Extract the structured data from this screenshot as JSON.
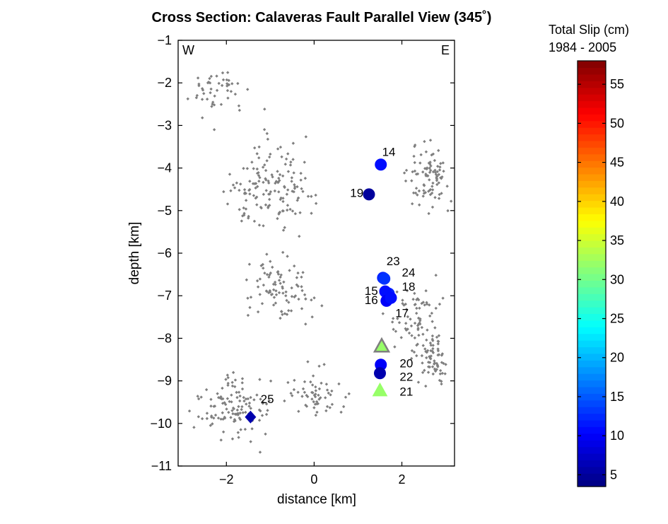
{
  "chart_data": {
    "type": "scatter",
    "title": "Cross Section: Calaveras Fault Parallel View (345˚)",
    "xlabel": "distance [km]",
    "ylabel": "depth [km]",
    "xlim": [
      -3.1,
      3.2
    ],
    "ylim": [
      -11,
      -1
    ],
    "xticks": [
      -2,
      0,
      2
    ],
    "xtick_labels": [
      "−2",
      "0",
      "2"
    ],
    "yticks": [
      -1,
      -2,
      -3,
      -4,
      -5,
      -6,
      -7,
      -8,
      -9,
      -10,
      -11
    ],
    "ytick_labels": [
      "−1",
      "−2",
      "−3",
      "−4",
      "−5",
      "−6",
      "−7",
      "−8",
      "−9",
      "−10",
      "−11"
    ],
    "corner_labels": {
      "left": "W",
      "right": "E"
    },
    "grid": false,
    "background_seismicity": {
      "color": "#7f7f7f",
      "count": 700,
      "clusters": [
        {
          "x": 2.6,
          "y": -4.2,
          "sx": 0.6,
          "sy": 0.8,
          "n": 90
        },
        {
          "x": -1.0,
          "y": -4.5,
          "sx": 1.2,
          "sy": 1.2,
          "n": 150
        },
        {
          "x": -0.8,
          "y": -6.8,
          "sx": 0.9,
          "sy": 0.8,
          "n": 90
        },
        {
          "x": 2.3,
          "y": -7.5,
          "sx": 0.8,
          "sy": 0.9,
          "n": 80
        },
        {
          "x": 2.7,
          "y": -8.5,
          "sx": 0.5,
          "sy": 0.6,
          "n": 60
        },
        {
          "x": -1.8,
          "y": -9.6,
          "sx": 0.9,
          "sy": 0.8,
          "n": 120
        },
        {
          "x": 0.0,
          "y": -9.4,
          "sx": 0.9,
          "sy": 0.7,
          "n": 60
        },
        {
          "x": -2.2,
          "y": -2.2,
          "sx": 0.8,
          "sy": 0.7,
          "n": 50
        }
      ]
    },
    "events": [
      {
        "id": "14",
        "x": 1.52,
        "y": -3.92,
        "slip": 11,
        "marker": "circle",
        "label_x": 1.55,
        "label_y": -3.62
      },
      {
        "id": "19",
        "x": 1.25,
        "y": -4.62,
        "slip": 5,
        "marker": "circle",
        "label_x": 0.82,
        "label_y": -4.58
      },
      {
        "id": "23",
        "x": 1.57,
        "y": -6.58,
        "slip": 12,
        "marker": "circle",
        "label_x": 1.65,
        "label_y": -6.18
      },
      {
        "id": "24",
        "x": 1.6,
        "y": -6.6,
        "slip": 13,
        "marker": "circle",
        "label_x": 2.0,
        "label_y": -6.45
      },
      {
        "id": "18",
        "x": 1.7,
        "y": -6.95,
        "slip": 12,
        "marker": "circle",
        "label_x": 2.0,
        "label_y": -6.78
      },
      {
        "id": "15",
        "x": 1.62,
        "y": -6.9,
        "slip": 11,
        "marker": "circle",
        "label_x": 1.15,
        "label_y": -6.88
      },
      {
        "id": "16",
        "x": 1.65,
        "y": -7.12,
        "slip": 10,
        "marker": "circle",
        "label_x": 1.15,
        "label_y": -7.1
      },
      {
        "id": "17",
        "x": 1.75,
        "y": -7.05,
        "slip": 11,
        "marker": "circle",
        "label_x": 1.85,
        "label_y": -7.4
      },
      {
        "id": "",
        "x": 1.54,
        "y": -8.18,
        "slip": 32,
        "marker": "triangle-gray-edge",
        "label_x": 0,
        "label_y": 0
      },
      {
        "id": "20",
        "x": 1.52,
        "y": -8.62,
        "slip": 10,
        "marker": "circle",
        "label_x": 1.95,
        "label_y": -8.58
      },
      {
        "id": "22",
        "x": 1.5,
        "y": -8.82,
        "slip": 6,
        "marker": "circle",
        "label_x": 1.95,
        "label_y": -8.9
      },
      {
        "id": "21",
        "x": 1.5,
        "y": -9.22,
        "slip": 32,
        "marker": "triangle",
        "label_x": 1.95,
        "label_y": -9.25
      },
      {
        "id": "25",
        "x": -1.45,
        "y": -9.85,
        "slip": 6,
        "marker": "diamond",
        "label_x": -1.22,
        "label_y": -9.42
      }
    ],
    "colorbar": {
      "title_lines": [
        "Total Slip (cm)",
        "1984 - 2005"
      ],
      "range": [
        3.5,
        58
      ],
      "ticks": [
        5,
        10,
        15,
        20,
        25,
        30,
        35,
        40,
        45,
        50,
        55
      ],
      "tick_labels": [
        "5",
        "10",
        "15",
        "20",
        "25",
        "30",
        "35",
        "40",
        "45",
        "50",
        "55"
      ],
      "colormap": "jet",
      "levels": 64
    }
  }
}
